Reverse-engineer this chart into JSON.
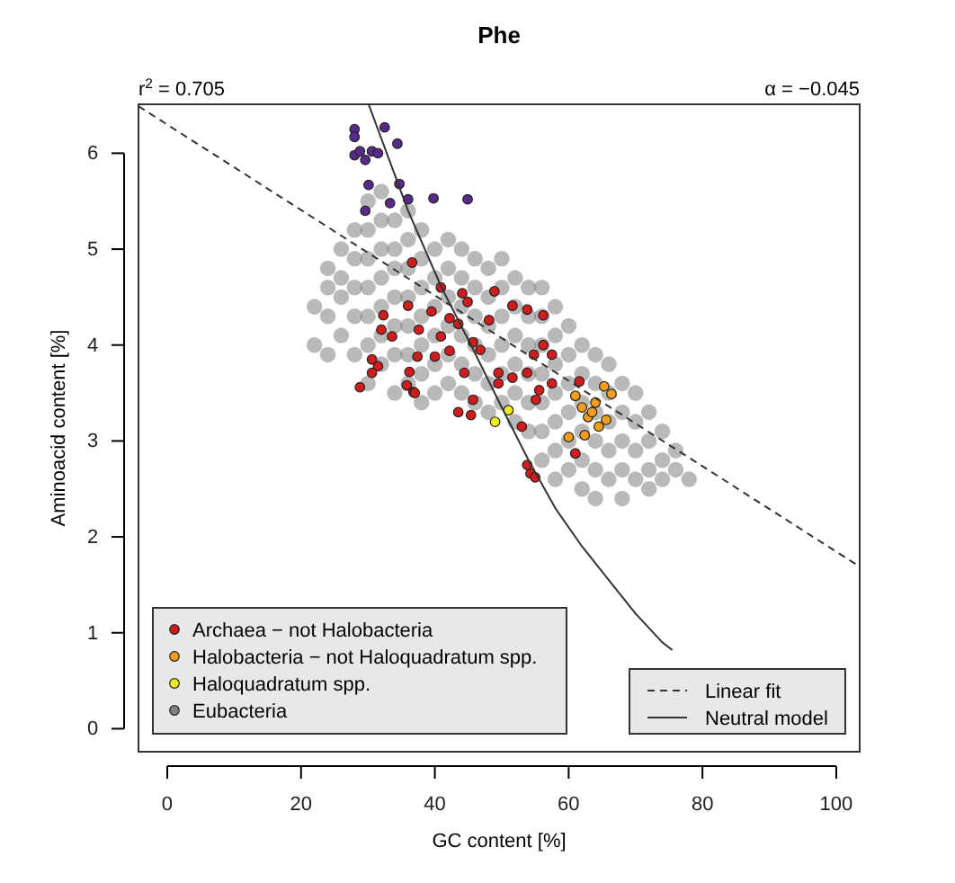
{
  "chart_data": {
    "type": "scatter",
    "title": "Phe",
    "xlabel": "GC content [%]",
    "ylabel": "Aminoacid content [%]",
    "annotations": [
      "r$^{2}$ = 0.705",
      "α = −0.045"
    ],
    "xlim": [
      -4.3,
      103.5
    ],
    "ylim": [
      -0.24,
      6.51
    ],
    "xticks": [
      0,
      20,
      40,
      60,
      80,
      100
    ],
    "yticks": [
      0,
      1,
      2,
      3,
      4,
      5,
      6
    ],
    "grid": false,
    "legend": "bottom",
    "series": [
      {
        "name": "Eubacteria",
        "marker": "circle",
        "color": "#808080",
        "x": [
          22,
          22,
          24,
          24,
          24,
          24,
          26,
          26,
          26,
          26,
          28,
          28,
          28,
          28,
          28,
          30,
          30,
          30,
          30,
          30,
          30,
          30,
          32,
          32,
          32,
          32,
          32,
          32,
          32,
          34,
          34,
          34,
          34,
          34,
          34,
          34,
          36,
          36,
          36,
          36,
          36,
          36,
          36,
          38,
          38,
          38,
          38,
          38,
          38,
          38,
          40,
          40,
          40,
          40,
          40,
          40,
          42,
          42,
          42,
          42,
          42,
          42,
          44,
          44,
          44,
          44,
          44,
          44,
          46,
          46,
          46,
          46,
          46,
          46,
          48,
          48,
          48,
          48,
          48,
          48,
          50,
          50,
          50,
          50,
          50,
          50,
          52,
          52,
          52,
          52,
          52,
          52,
          54,
          54,
          54,
          54,
          54,
          54,
          56,
          56,
          56,
          56,
          56,
          56,
          56,
          58,
          58,
          58,
          58,
          58,
          58,
          58,
          60,
          60,
          60,
          60,
          60,
          60,
          62,
          62,
          62,
          62,
          62,
          62,
          64,
          64,
          64,
          64,
          64,
          64,
          66,
          66,
          66,
          66,
          66,
          68,
          68,
          68,
          68,
          68,
          70,
          70,
          70,
          70,
          72,
          72,
          72,
          72,
          74,
          74,
          74,
          76,
          76,
          78
        ],
        "values": [
          4.4,
          4.0,
          4.8,
          4.3,
          3.9,
          4.6,
          5.0,
          4.5,
          4.1,
          4.7,
          5.2,
          4.9,
          4.6,
          4.3,
          3.9,
          5.5,
          5.2,
          4.9,
          4.6,
          4.3,
          4.0,
          3.6,
          5.6,
          5.3,
          5.0,
          4.7,
          4.4,
          4.1,
          3.8,
          5.3,
          5.0,
          4.8,
          4.5,
          4.2,
          3.9,
          3.5,
          5.4,
          5.1,
          4.8,
          4.5,
          4.2,
          3.9,
          3.6,
          5.2,
          4.9,
          4.6,
          4.3,
          4.0,
          3.7,
          3.4,
          5.0,
          4.7,
          4.4,
          4.1,
          3.8,
          3.5,
          5.1,
          4.8,
          4.5,
          4.2,
          3.9,
          3.6,
          5.0,
          4.7,
          4.4,
          4.1,
          3.8,
          3.5,
          4.9,
          4.6,
          4.3,
          4.0,
          3.7,
          3.4,
          4.8,
          4.5,
          4.2,
          3.9,
          3.6,
          3.3,
          4.9,
          4.6,
          4.3,
          4.0,
          3.7,
          3.4,
          4.7,
          4.4,
          4.1,
          3.8,
          3.5,
          3.2,
          4.6,
          4.3,
          4.0,
          3.7,
          3.4,
          3.1,
          4.6,
          4.3,
          4.0,
          3.7,
          3.4,
          3.1,
          2.8,
          4.4,
          4.1,
          3.8,
          3.5,
          3.2,
          2.9,
          2.6,
          4.2,
          3.9,
          3.6,
          3.3,
          3.0,
          2.7,
          4.0,
          3.7,
          3.4,
          3.1,
          2.8,
          2.5,
          3.9,
          3.6,
          3.3,
          3.0,
          2.7,
          2.4,
          3.8,
          3.5,
          3.2,
          2.9,
          2.6,
          3.6,
          3.3,
          3.0,
          2.7,
          2.4,
          3.5,
          3.2,
          2.9,
          2.6,
          3.3,
          3.0,
          2.7,
          2.5,
          3.1,
          2.8,
          2.6,
          2.9,
          2.7,
          2.6
        ]
      },
      {
        "color": "#5a2a8a",
        "marker": "circle",
        "x": [
          28,
          28,
          32.5,
          34.4,
          28,
          28.8,
          29.6,
          30.6,
          31.5,
          30.1,
          34.7,
          36,
          39.8,
          44.9,
          33.3,
          29.6
        ],
        "values": [
          6.25,
          6.17,
          6.27,
          6.1,
          5.98,
          6.02,
          5.93,
          6.02,
          6.0,
          5.67,
          5.68,
          5.52,
          5.53,
          5.52,
          5.48,
          5.4
        ]
      },
      {
        "name": "Archaea − not Halobacteria",
        "marker": "circle",
        "color": "#d01c1c",
        "x": [
          28.8,
          31.5,
          36.8,
          43.5,
          45.4,
          53,
          54.3,
          53.8,
          55,
          44.9,
          42.2,
          40.9,
          36.6,
          36,
          32.3,
          32,
          33.6,
          37.6,
          40,
          42.2,
          46.8,
          48.1,
          48.9,
          51.6,
          53.8,
          56.2,
          49.5,
          51.6,
          53.8,
          55.6,
          55.1,
          57.5,
          61.6,
          57.5,
          56.2,
          54.8,
          44.1,
          44.4,
          45.7,
          43.5,
          39.5,
          30.6,
          37.4,
          40.9,
          36.2,
          61,
          30.6,
          35.8,
          37,
          49.5,
          45.7
        ],
        "values": [
          3.56,
          3.78,
          3.51,
          3.3,
          3.27,
          3.15,
          2.66,
          2.75,
          2.62,
          4.45,
          4.28,
          4.6,
          4.86,
          4.41,
          4.31,
          4.16,
          4.09,
          4.16,
          3.88,
          3.94,
          3.95,
          4.26,
          4.56,
          4.41,
          4.37,
          4.31,
          3.71,
          3.66,
          3.71,
          3.53,
          3.43,
          3.6,
          3.62,
          3.9,
          4.0,
          3.9,
          4.54,
          3.71,
          4.03,
          4.22,
          4.35,
          3.85,
          3.88,
          4.09,
          3.72,
          2.87,
          3.71,
          3.58,
          3.5,
          3.6,
          3.43
        ]
      },
      {
        "name": "Halobacteria − not Haloquadratum spp.",
        "marker": "circle",
        "color": "#f39c1e",
        "x": [
          62.9,
          65.6,
          66.4,
          61,
          60,
          62.4,
          63.5,
          64.5,
          65.3,
          62,
          64
        ],
        "values": [
          3.25,
          3.22,
          3.49,
          3.47,
          3.04,
          3.06,
          3.3,
          3.15,
          3.57,
          3.35,
          3.4
        ]
      },
      {
        "name": "Haloquadratum spp.",
        "marker": "circle",
        "color": "#eeee22",
        "x": [
          49,
          51
        ],
        "values": [
          3.2,
          3.32
        ]
      },
      {
        "name": "Linear fit",
        "type": "line",
        "line_style": "dashed",
        "marker": "none",
        "color": "#333333",
        "x": [
          -4.3,
          103.5
        ],
        "values": [
          6.49,
          1.69
        ]
      },
      {
        "name": "Neutral model",
        "type": "line",
        "line_style": "solid",
        "marker": "none",
        "color": "#333333",
        "x": [
          30.1,
          36,
          41,
          45.4,
          50,
          54,
          58,
          62,
          66,
          70,
          74,
          75.5
        ],
        "values": [
          6.51,
          5.4,
          4.6,
          4.0,
          3.35,
          2.8,
          2.3,
          1.9,
          1.55,
          1.2,
          0.9,
          0.82
        ]
      }
    ]
  }
}
